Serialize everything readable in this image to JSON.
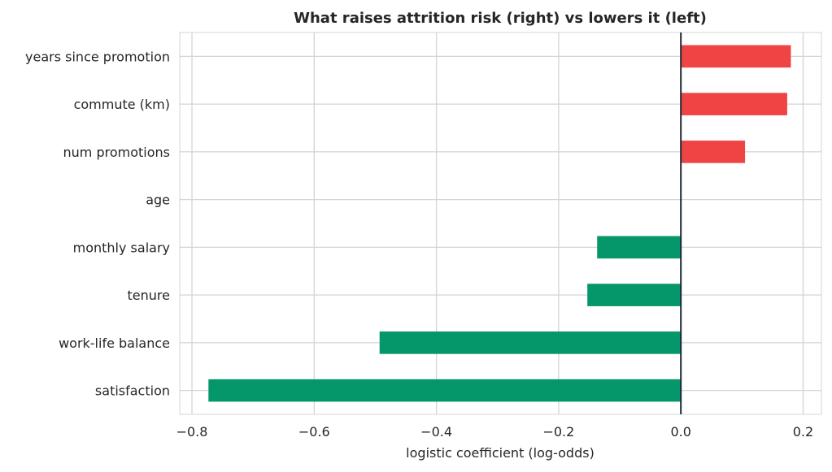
{
  "chart_data": {
    "type": "bar",
    "orientation": "horizontal",
    "title": "What raises attrition risk (right) vs lowers it (left)",
    "xlabel": "logistic coefficient (log-odds)",
    "ylabel": "",
    "xlim": [
      -0.82,
      0.23
    ],
    "xticks": [
      -0.8,
      -0.6,
      -0.4,
      -0.2,
      0.0,
      0.2
    ],
    "xtick_labels": [
      "−0.8",
      "−0.6",
      "−0.4",
      "−0.2",
      "0.0",
      "0.2"
    ],
    "categories": [
      "years since promotion",
      "commute (km)",
      "num promotions",
      "age",
      "monthly salary",
      "tenure",
      "work-life balance",
      "satisfaction"
    ],
    "values": [
      0.18,
      0.174,
      0.105,
      0.0,
      -0.137,
      -0.153,
      -0.493,
      -0.773
    ],
    "grid": true,
    "colors": {
      "positive": "#ef4444",
      "negative": "#059669",
      "zero_line": "#1f2937",
      "grid": "#d4d4d4"
    }
  }
}
